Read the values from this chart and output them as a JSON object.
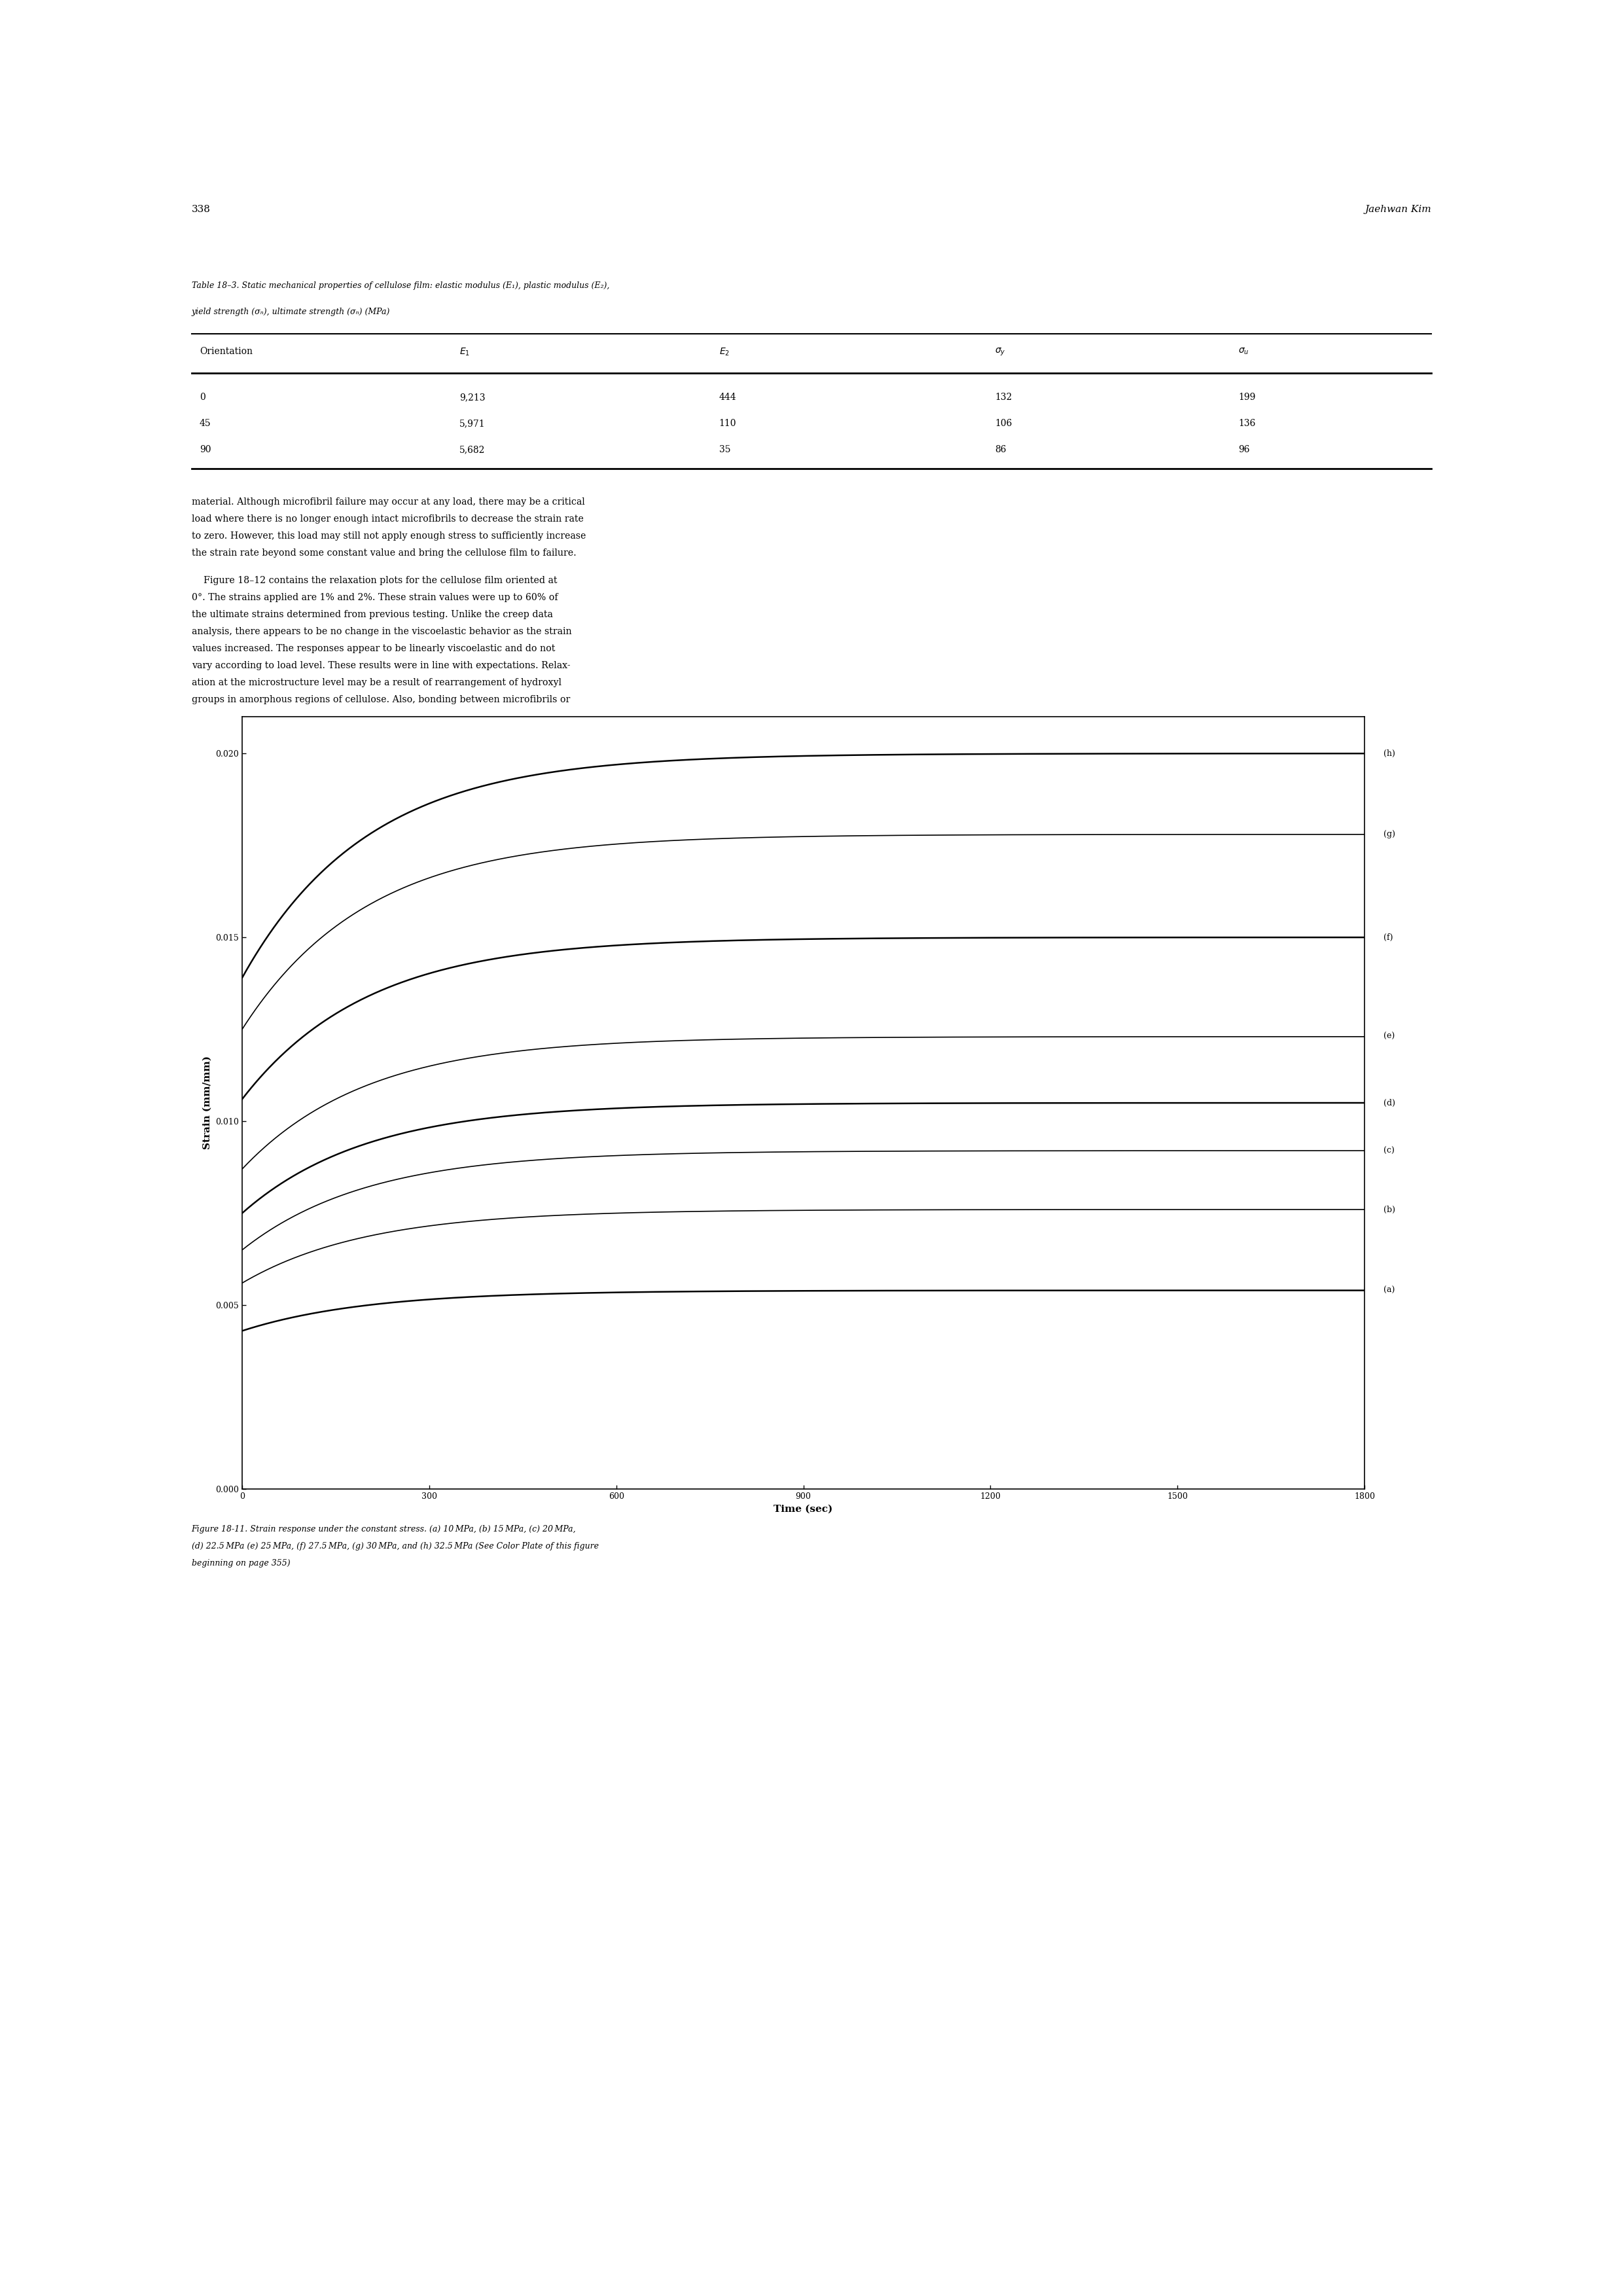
{
  "page_number": "338",
  "page_header_right": "Jaehwan Kim",
  "background_color": "#ffffff",
  "table_caption_line1": "Table 18–3. Static mechanical properties of cellulose film: elastic modulus (E₁), plastic modulus (E₂),",
  "table_caption_line2": "yield strength (σₙ), ultimate strength (σₙ) (MPa)",
  "table_rows": [
    [
      "0",
      "9,213",
      "444",
      "132",
      "199"
    ],
    [
      "45",
      "5,971",
      "110",
      "106",
      "136"
    ],
    [
      "90",
      "5,682",
      "35",
      "86",
      "96"
    ]
  ],
  "para1_lines": [
    "material. Although microfibril failure may occur at any load, there may be a critical",
    "load where there is no longer enough intact microfibrils to decrease the strain rate",
    "to zero. However, this load may still not apply enough stress to sufficiently increase",
    "the strain rate beyond some constant value and bring the cellulose film to failure."
  ],
  "para2_lines": [
    "    Figure 18–12 contains the relaxation plots for the cellulose film oriented at",
    "0°. The strains applied are 1% and 2%. These strain values were up to 60% of",
    "the ultimate strains determined from previous testing. Unlike the creep data",
    "analysis, there appears to be no change in the viscoelastic behavior as the strain",
    "values increased. The responses appear to be linearly viscoelastic and do not",
    "vary according to load level. These results were in line with expectations. Relax-",
    "ation at the microstructure level may be a result of rearrangement of hydroxyl",
    "groups in amorphous regions of cellulose. Also, bonding between microfibrils or"
  ],
  "fig_cap_line1": "Figure 18-11. Strain response under the constant stress. (a) 10 MPa, (b) 15 MPa, (c) 20 MPa,",
  "fig_cap_line2": "(d) 22.5 MPa (e) 25 MPa, (f) 27.5 MPa, (g) 30 MPa, and (h) 32.5 MPa (See Color Plate of this figure",
  "fig_cap_line3": "beginning on page 355)",
  "plot": {
    "xlabel": "Time (sec)",
    "ylabel": "Strain (mm/mm)",
    "xlim": [
      0,
      1800
    ],
    "ylim": [
      0.0,
      0.021
    ],
    "xticks": [
      0,
      300,
      600,
      900,
      1200,
      1500,
      1800
    ],
    "yticks": [
      0.0,
      0.005,
      0.01,
      0.015,
      0.02
    ],
    "ytick_labels": [
      "0.000",
      "0.005",
      "0.010",
      "0.015",
      "0.020"
    ],
    "curve_labels": [
      "(a)",
      "(b)",
      "(c)",
      "(d)",
      "(e)",
      "(f)",
      "(g)",
      "(h)"
    ],
    "curve_initial_values": [
      0.0043,
      0.0056,
      0.0065,
      0.0075,
      0.0087,
      0.0106,
      0.0125,
      0.0139
    ],
    "curve_final_values": [
      0.0054,
      0.0076,
      0.0092,
      0.0105,
      0.0123,
      0.015,
      0.0178,
      0.02
    ],
    "tau": 200
  }
}
